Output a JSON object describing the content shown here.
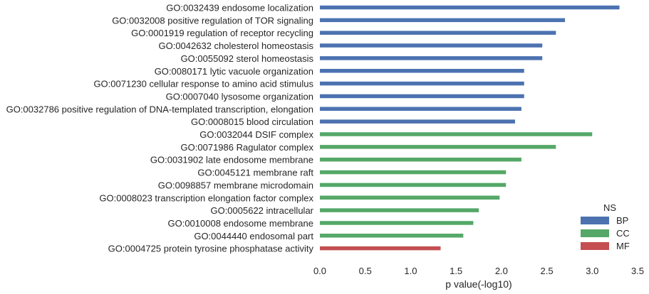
{
  "chart_data": {
    "type": "bar",
    "orientation": "horizontal",
    "xlabel": "p value(-log10)",
    "ylabel": "",
    "xlim": [
      0,
      3.5
    ],
    "xticks": [
      "0.0",
      "0.5",
      "1.0",
      "1.5",
      "2.0",
      "2.5",
      "3.0",
      "3.5"
    ],
    "grid": false,
    "legend": {
      "title": "NS",
      "position": "bottom-right",
      "entries": [
        {
          "name": "BP",
          "color": "#4c72b0"
        },
        {
          "name": "CC",
          "color": "#55a868"
        },
        {
          "name": "MF",
          "color": "#c44e52"
        }
      ]
    },
    "bars": [
      {
        "label": "GO:0032439 endosome localization",
        "value": 3.3,
        "group": "BP"
      },
      {
        "label": "GO:0032008 positive regulation of TOR signaling",
        "value": 2.7,
        "group": "BP"
      },
      {
        "label": "GO:0001919 regulation of receptor recycling",
        "value": 2.6,
        "group": "BP"
      },
      {
        "label": "GO:0042632 cholesterol homeostasis",
        "value": 2.45,
        "group": "BP"
      },
      {
        "label": "GO:0055092 sterol homeostasis",
        "value": 2.45,
        "group": "BP"
      },
      {
        "label": "GO:0080171 lytic vacuole organization",
        "value": 2.25,
        "group": "BP"
      },
      {
        "label": "GO:0071230 cellular response to amino acid stimulus",
        "value": 2.25,
        "group": "BP"
      },
      {
        "label": "GO:0007040 lysosome organization",
        "value": 2.25,
        "group": "BP"
      },
      {
        "label": "GO:0032786 positive regulation of DNA-templated transcription, elongation",
        "value": 2.22,
        "group": "BP"
      },
      {
        "label": "GO:0008015 blood circulation",
        "value": 2.15,
        "group": "BP"
      },
      {
        "label": "GO:0032044 DSIF complex",
        "value": 3.0,
        "group": "CC"
      },
      {
        "label": "GO:0071986 Ragulator complex",
        "value": 2.6,
        "group": "CC"
      },
      {
        "label": "GO:0031902 late endosome membrane",
        "value": 2.22,
        "group": "CC"
      },
      {
        "label": "GO:0045121 membrane raft",
        "value": 2.05,
        "group": "CC"
      },
      {
        "label": "GO:0098857 membrane microdomain",
        "value": 2.05,
        "group": "CC"
      },
      {
        "label": "GO:0008023 transcription elongation factor complex",
        "value": 1.98,
        "group": "CC"
      },
      {
        "label": "GO:0005622 intracellular",
        "value": 1.75,
        "group": "CC"
      },
      {
        "label": "GO:0010008 endosome membrane",
        "value": 1.69,
        "group": "CC"
      },
      {
        "label": "GO:0044440 endosomal part",
        "value": 1.58,
        "group": "CC"
      },
      {
        "label": "GO:0004725 protein tyrosine phosphatase activity",
        "value": 1.33,
        "group": "MF"
      }
    ]
  }
}
